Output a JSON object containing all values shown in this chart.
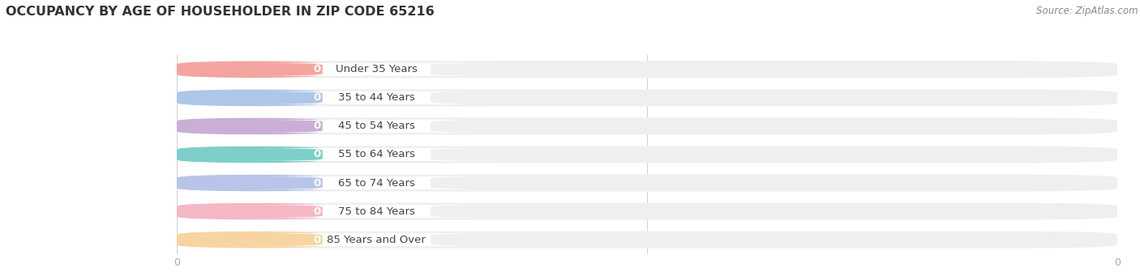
{
  "title": "OCCUPANCY BY AGE OF HOUSEHOLDER IN ZIP CODE 65216",
  "source": "Source: ZipAtlas.com",
  "categories": [
    "Under 35 Years",
    "35 to 44 Years",
    "45 to 54 Years",
    "55 to 64 Years",
    "65 to 74 Years",
    "75 to 84 Years",
    "85 Years and Over"
  ],
  "values": [
    0,
    0,
    0,
    0,
    0,
    0,
    0
  ],
  "bar_colors": [
    "#f4a49e",
    "#aec6e8",
    "#c9aed6",
    "#7ececa",
    "#b8c4e8",
    "#f4b8c4",
    "#f8d4a0"
  ],
  "bar_bg_color": "#efefef",
  "bar_white_inner": "#ffffff",
  "background_color": "#ffffff",
  "title_fontsize": 11.5,
  "label_fontsize": 9.5,
  "tick_fontsize": 9,
  "source_fontsize": 8.5,
  "grid_color": "#d0d0d0",
  "value_label_color": "#ffffff",
  "tick_color": "#aaaaaa"
}
